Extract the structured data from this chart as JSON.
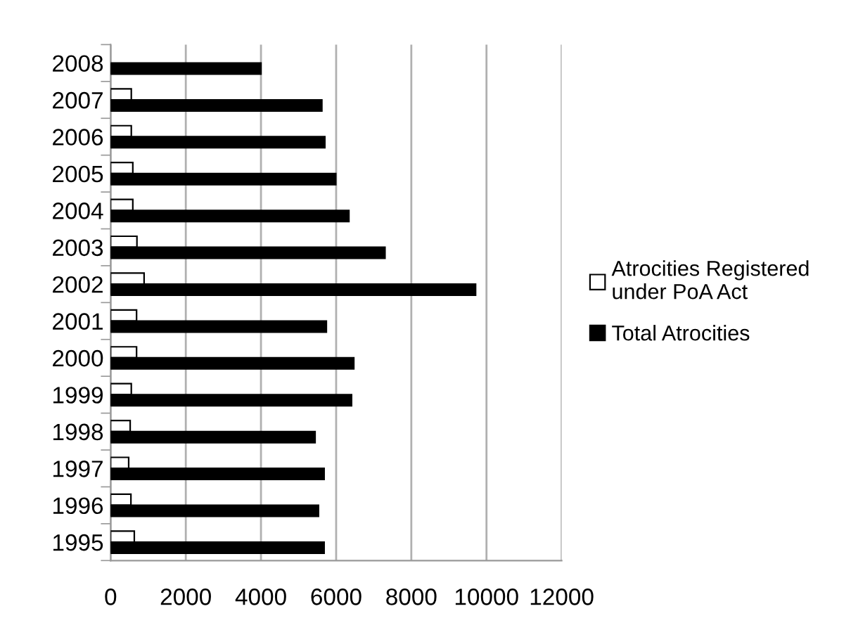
{
  "chart_data": {
    "type": "bar",
    "orientation": "horizontal",
    "categories": [
      "2008",
      "2007",
      "2006",
      "2005",
      "2004",
      "2003",
      "2002",
      "2001",
      "2000",
      "1999",
      "1998",
      "1997",
      "1996",
      "1995"
    ],
    "series": [
      {
        "name": "Atrocities Registered under PoA Act",
        "color": "#ffffff",
        "values": [
          null,
          550,
          550,
          590,
          590,
          700,
          890,
          690,
          690,
          550,
          520,
          480,
          540,
          630
        ]
      },
      {
        "name": "Total Atrocities",
        "color": "#000000",
        "values": [
          4000,
          5620,
          5700,
          5990,
          6340,
          7300,
          9710,
          5740,
          6470,
          6410,
          5440,
          5680,
          5530,
          5680
        ]
      }
    ],
    "xlim": [
      0,
      12000
    ],
    "xticks": [
      0,
      2000,
      4000,
      6000,
      8000,
      10000,
      12000
    ],
    "grid": "x",
    "legend": "right"
  }
}
